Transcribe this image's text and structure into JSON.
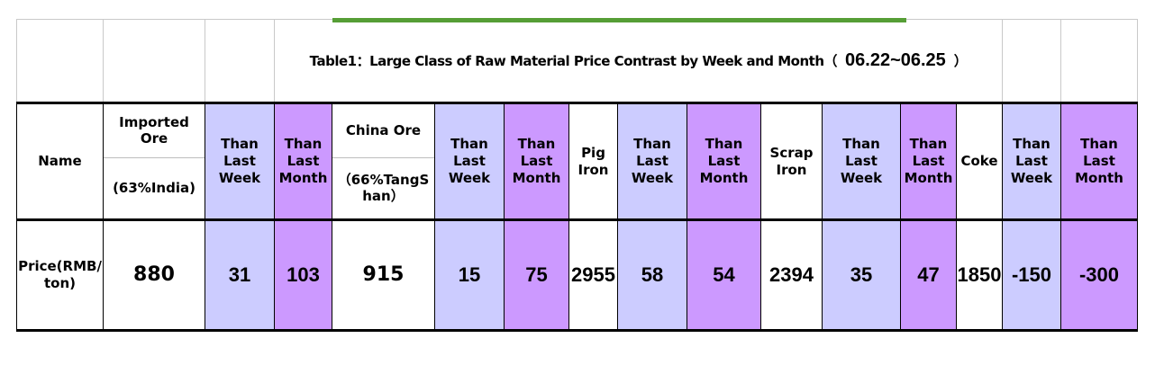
{
  "colors": {
    "week_bg": "#ccccff",
    "month_bg": "#cc99ff",
    "accent_line": "#569e36",
    "gridline": "#c9c9c9",
    "border": "#000000"
  },
  "title": {
    "prefix": "Table1：Large Class of Raw Material Price Contrast by Week and Month（",
    "date": "06.22~06.25",
    "suffix": "）"
  },
  "header": {
    "name": "Name",
    "week_label": "Than Last Week",
    "month_label": "Than Last Month",
    "materials": [
      {
        "label": "Imported Ore",
        "sub": "(63%India)"
      },
      {
        "label": "China Ore",
        "sub": "（66%TangShan）"
      },
      {
        "label": "Pig Iron"
      },
      {
        "label": "Scrap Iron"
      },
      {
        "label": "Coke"
      }
    ]
  },
  "data_row": {
    "label": "Price(RMB/ton)",
    "values": [
      {
        "price": "880",
        "than_last_week": "31",
        "than_last_month": "103"
      },
      {
        "price": "915",
        "than_last_week": "15",
        "than_last_month": "75"
      },
      {
        "price": "2955",
        "than_last_week": "58",
        "than_last_month": "54"
      },
      {
        "price": "2394",
        "than_last_week": "35",
        "than_last_month": "47"
      },
      {
        "price": "1850",
        "than_last_week": "-150",
        "than_last_month": "-300"
      }
    ]
  }
}
